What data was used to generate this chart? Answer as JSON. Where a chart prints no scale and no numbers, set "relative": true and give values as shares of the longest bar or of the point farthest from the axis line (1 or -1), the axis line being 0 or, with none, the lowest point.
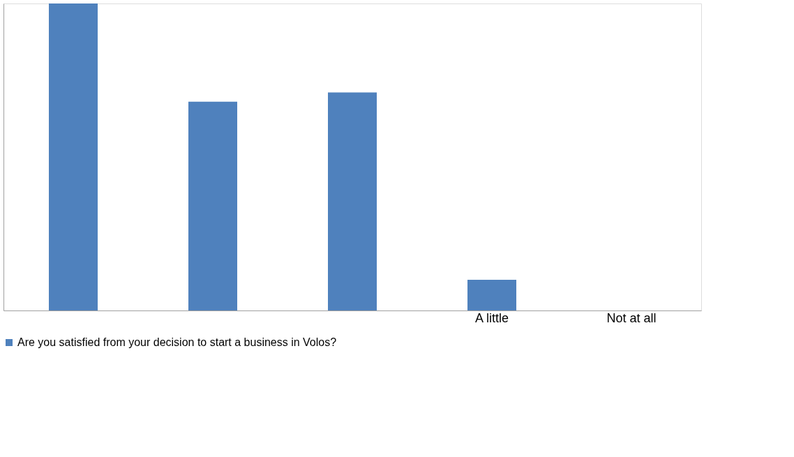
{
  "chart_data": {
    "type": "bar",
    "relative": true,
    "categories": [
      null,
      null,
      null,
      "A little",
      "Not at all"
    ],
    "series": [
      {
        "name": "Are you satisfied from your decision to start a business in Volos?",
        "color": "#4f81bd",
        "values": [
          1,
          0.68,
          0.71,
          0.1,
          0
        ]
      }
    ],
    "legend": "bottom",
    "grid": false
  }
}
